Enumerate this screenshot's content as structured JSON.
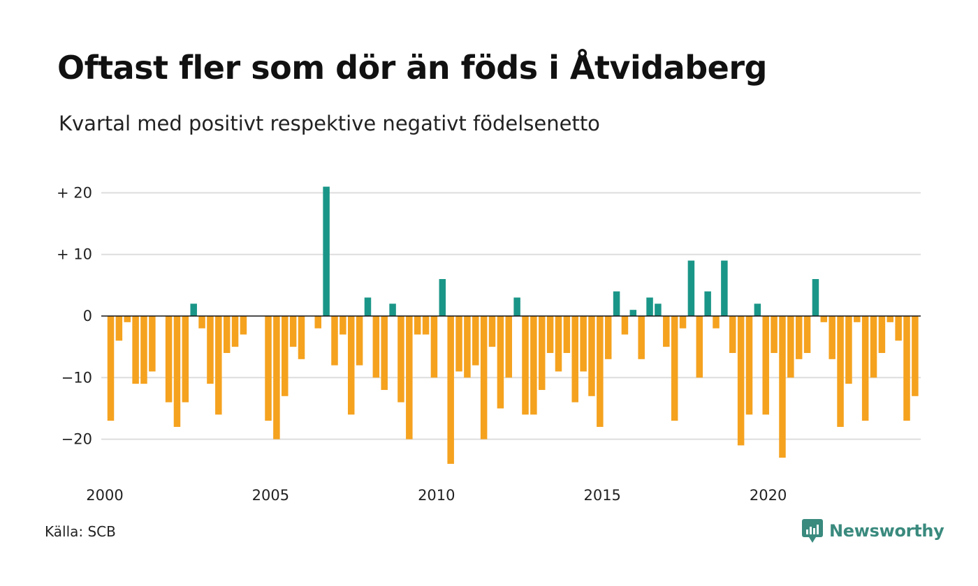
{
  "header": {
    "title": "Oftast fler som dör än föds i Åtvidaberg",
    "subtitle": "Kvartal med positivt respektive negativt födelsenetto"
  },
  "footer": {
    "source": "Källa: SCB",
    "brand": "Newsworthy"
  },
  "colors": {
    "positive": "#1a9688",
    "negative": "#f5a21f",
    "grid": "#dddddd",
    "zero_line": "#111111",
    "brand": "#3a8a7e"
  },
  "chart_data": {
    "type": "bar",
    "x_start": "2000 Q1",
    "x_tick_labels": [
      "2000",
      "2005",
      "2010",
      "2015",
      "2020"
    ],
    "y_tick_labels": [
      "+ 20",
      "+ 10",
      "0",
      "−10",
      "−20"
    ],
    "y_ticks": [
      20,
      10,
      0,
      -10,
      -20
    ],
    "ylim": [
      -25,
      22
    ],
    "grid": true,
    "values": [
      -17,
      -4,
      -1,
      -11,
      -11,
      -9,
      0,
      -14,
      -18,
      -14,
      2,
      -2,
      -11,
      -16,
      -6,
      -5,
      -3,
      0,
      0,
      -17,
      -20,
      -13,
      -5,
      -7,
      0,
      -2,
      21,
      -8,
      -3,
      -16,
      -8,
      3,
      -10,
      -12,
      2,
      -14,
      -20,
      -3,
      -3,
      -10,
      6,
      -24,
      -9,
      -10,
      -8,
      -20,
      -5,
      -15,
      -10,
      3,
      -16,
      -16,
      -12,
      -6,
      -9,
      -6,
      -14,
      -9,
      -13,
      -18,
      -7,
      4,
      -3,
      1,
      -7,
      3,
      2,
      -5,
      -17,
      -2,
      9,
      -10,
      4,
      -2,
      9,
      -6,
      -21,
      -16,
      2,
      -16,
      -6,
      -23,
      -10,
      -7,
      -6,
      6,
      -1,
      -7,
      -18,
      -11,
      -1,
      -17,
      -10,
      -6,
      -1,
      -4,
      -17,
      -13
    ]
  }
}
